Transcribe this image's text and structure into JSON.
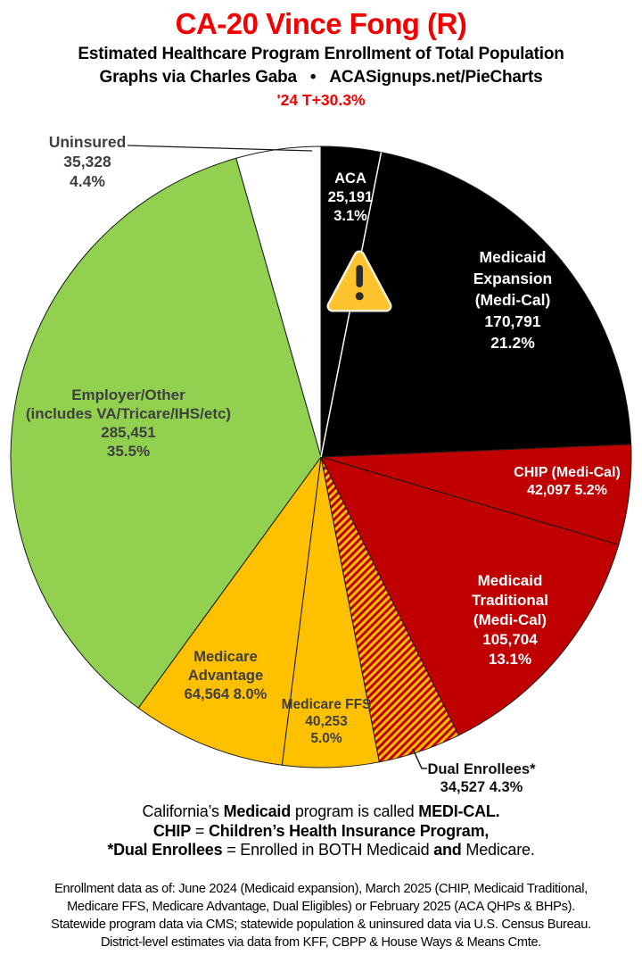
{
  "header": {
    "title": "CA-20 Vince Fong (R)",
    "subtitle": "Estimated Healthcare Program Enrollment of Total Population",
    "byline": "Graphs via Charles Gaba",
    "separator": "•",
    "site": "ACASignups.net/PieCharts",
    "margin_note": "'24 T+30.3%"
  },
  "colors": {
    "title_red": "#f40000",
    "pie_black": "#000000",
    "pie_dark_red": "#c00000",
    "pie_gold": "#ffc000",
    "pie_green": "#92d050",
    "pie_white": "#ffffff",
    "label_gray": "#404040",
    "slice_outline": "#1a1a1a",
    "warning_fill": "#fdc32c"
  },
  "chart_data": {
    "type": "pie",
    "title": "CA-20 Vince Fong (R)",
    "subtitle": "Estimated Healthcare Program Enrollment of Total Population",
    "start_angle_deg": 0,
    "direction": "clockwise",
    "total_shown_pct": 99.8,
    "slices": [
      {
        "id": "aca",
        "name": "ACA",
        "value": 25191,
        "pct": 3.1,
        "color": "#000000",
        "label_text": "ACA\n25,191\n3.1%",
        "label_placement": "inside"
      },
      {
        "id": "medicaid-expansion",
        "name": "Medicaid Expansion (Medi-Cal)",
        "value": 170791,
        "pct": 21.2,
        "color": "#000000",
        "label_text": "Medicaid\nExpansion\n(Medi-Cal)\n170,791\n21.2%",
        "label_placement": "inside"
      },
      {
        "id": "chip",
        "name": "CHIP (Medi-Cal)",
        "value": 42097,
        "pct": 5.2,
        "color": "#c00000",
        "label_text": "CHIP (Medi-Cal)\n42,097 5.2%",
        "label_placement": "inside"
      },
      {
        "id": "medicaid-traditional",
        "name": "Medicaid Traditional (Medi-Cal)",
        "value": 105704,
        "pct": 13.1,
        "color": "#c00000",
        "label_text": "Medicaid\nTraditional\n(Medi-Cal)\n105,704\n13.1%",
        "label_placement": "inside"
      },
      {
        "id": "dual-enrollees",
        "name": "Dual Enrollees*",
        "value": 34527,
        "pct": 4.3,
        "color": "hatch",
        "label_text": "Dual Enrollees*\n34,527 4.3%",
        "label_placement": "outside"
      },
      {
        "id": "medicare-ffs",
        "name": "Medicare FFS",
        "value": 40253,
        "pct": 5.0,
        "color": "#ffc000",
        "label_text": "Medicare FFS\n40,253\n5.0%",
        "label_placement": "inside"
      },
      {
        "id": "medicare-advantage",
        "name": "Medicare Advantage",
        "value": 64564,
        "pct": 8.0,
        "color": "#ffc000",
        "label_text": "Medicare\nAdvantage\n64,564 8.0%",
        "label_placement": "inside"
      },
      {
        "id": "employer",
        "name": "Employer/Other (includes VA/Tricare/IHS/etc)",
        "value": 285451,
        "pct": 35.5,
        "color": "#92d050",
        "label_text": "Employer/Other\n(includes VA/Tricare/IHS/etc)\n285,451\n35.5%",
        "label_placement": "inside"
      },
      {
        "id": "uninsured",
        "name": "Uninsured",
        "value": 35328,
        "pct": 4.4,
        "color": "#ffffff",
        "label_text": "Uninsured\n35,328\n4.4%",
        "label_placement": "outside"
      }
    ],
    "hatch_colors": [
      "#c00000",
      "#ffc000"
    ],
    "divider_after_slice_index": 0,
    "warning_icon": "warning-triangle",
    "legend_position": "none",
    "grid": false
  },
  "notes": {
    "lines": [
      [
        {
          "t": "California’s "
        },
        {
          "t": "Medicaid",
          "b": true
        },
        {
          "t": " program is called "
        },
        {
          "t": "MEDI-CAL.",
          "b": true
        }
      ],
      [
        {
          "t": "CHIP",
          "b": true
        },
        {
          "t": " = "
        },
        {
          "t": "Children’s Health Insurance Program,",
          "b": true
        }
      ],
      [
        {
          "t": "*Dual Enrollees",
          "b": true
        },
        {
          "t": " = Enrolled in BOTH Medicaid "
        },
        {
          "t": "and",
          "b": true
        },
        {
          "t": " Medicare."
        }
      ]
    ]
  },
  "source": {
    "lines": [
      "Enrollment data as of: June 2024 (Medicaid expansion), March 2025 (CHIP, Medicaid Traditional,",
      "Medicare FFS, Medicare Advantage, Dual Eligibles) or February 2025 (ACA QHPs & BHPs).",
      "Statewide program data via CMS; statewide population & uninsured data via U.S. Census Bureau.",
      "District-level estimates via data from KFF, CBPP & House Ways & Means Cmte."
    ]
  }
}
